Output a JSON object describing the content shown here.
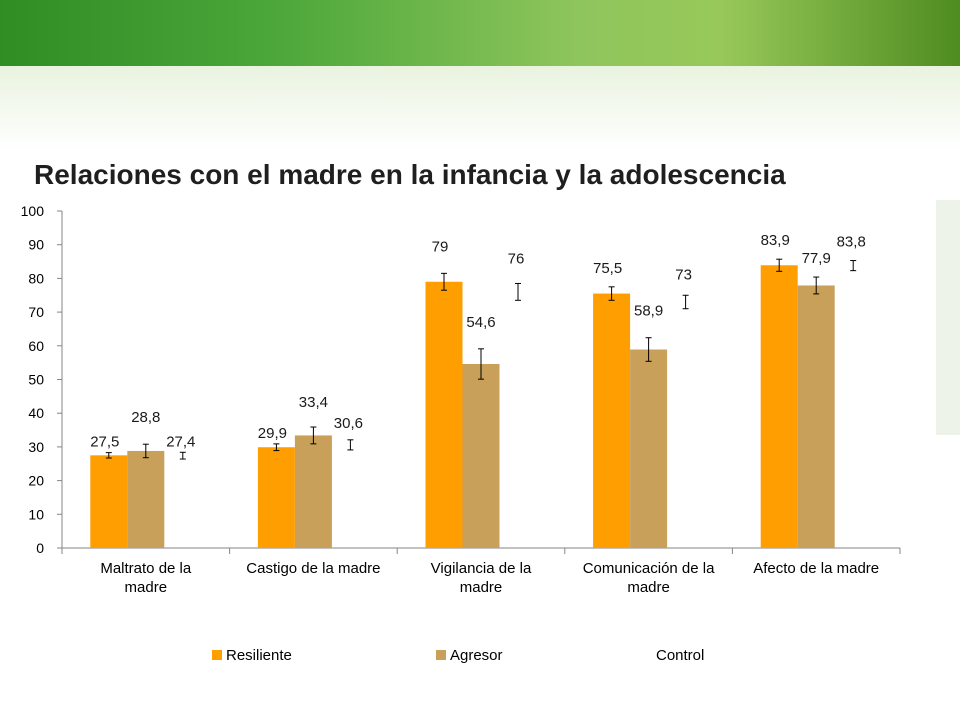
{
  "title": "Relaciones con el madre  en la infancia y la adolescencia",
  "chart_data": {
    "type": "bar",
    "categories": [
      [
        "Maltrato de la",
        "madre"
      ],
      [
        "Castigo de la madre"
      ],
      [
        "Vigilancia de la",
        "madre"
      ],
      [
        "Comunicación de la",
        "madre"
      ],
      [
        "Afecto de la madre"
      ]
    ],
    "series": [
      {
        "name": "Resiliente",
        "color": "#FF9E00",
        "values": [
          27.5,
          29.9,
          79,
          75.5,
          83.9
        ],
        "labels": [
          "27,5",
          "29,9",
          "79",
          "75,5",
          "83,9"
        ],
        "err": [
          0.8,
          1.0,
          2.5,
          2.0,
          1.8
        ]
      },
      {
        "name": "Agresor",
        "color": "#C9A05A",
        "values": [
          28.8,
          33.4,
          54.6,
          58.9,
          77.9
        ],
        "labels": [
          "28,8",
          "33,4",
          "54,6",
          "58,9",
          "77,9"
        ],
        "err": [
          2.0,
          2.5,
          4.5,
          3.5,
          2.5
        ]
      },
      {
        "name": "Control",
        "color": "none",
        "values": [
          27.4,
          30.6,
          76,
          73,
          83.8
        ],
        "labels": [
          "27,4",
          "30,6",
          "76",
          "73",
          "83,8"
        ],
        "err": [
          1.0,
          1.5,
          2.5,
          2.0,
          1.5
        ]
      }
    ],
    "yticks": [
      "0",
      "10",
      "20",
      "30",
      "40",
      "50",
      "60",
      "70",
      "80",
      "90",
      "100"
    ],
    "ylim": [
      0,
      100
    ],
    "legend_position": "bottom"
  }
}
